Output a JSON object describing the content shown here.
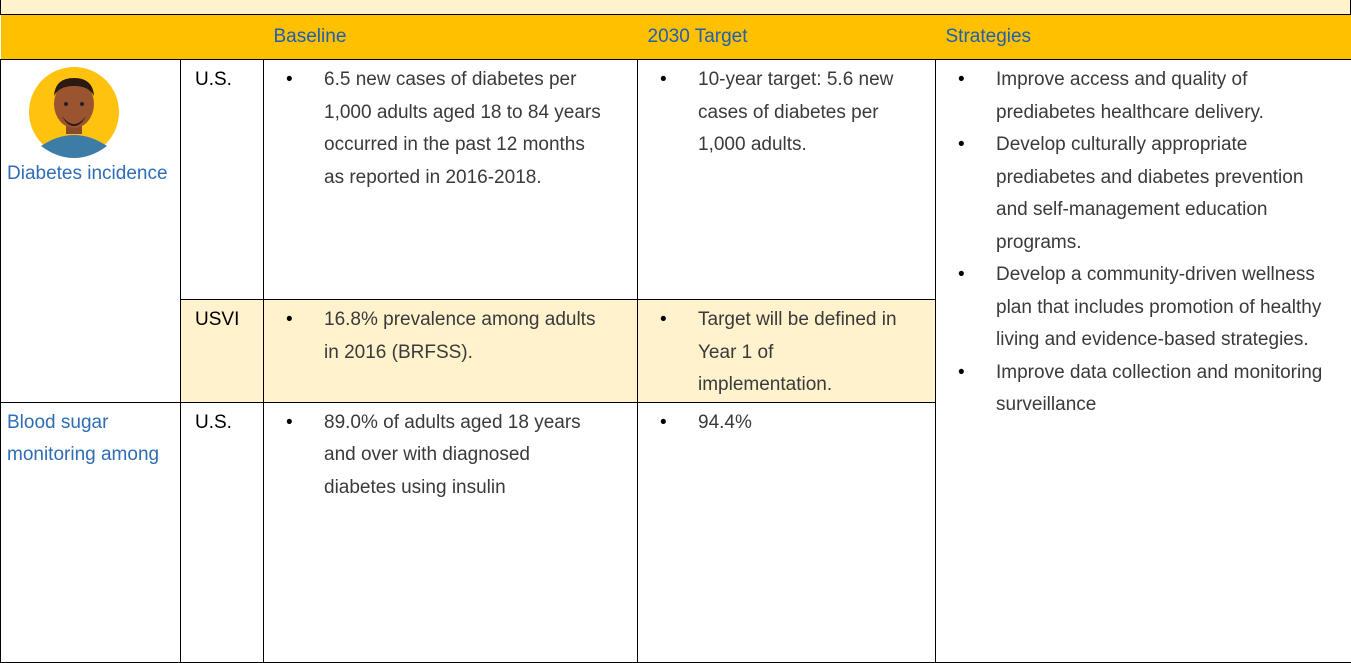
{
  "header": {
    "columns": [
      "Baseline",
      "2030 Target",
      "Strategies"
    ]
  },
  "rows": [
    {
      "measure": "Diabetes incidence",
      "region": "U.S.",
      "baseline": [
        "6.5 new cases of diabetes per 1,000 adults aged 18 to 84 years occurred in the past 12 months as reported in 2016-2018."
      ],
      "target": [
        "10-year target: 5.6 new cases of diabetes per 1,000 adults."
      ]
    },
    {
      "region": "USVI",
      "baseline": [
        "16.8% prevalence among adults in 2016 (BRFSS)."
      ],
      "target": [
        "Target will be defined in Year 1 of implementation."
      ]
    },
    {
      "measure": "Blood sugar monitoring among",
      "region": "U.S.",
      "baseline": [
        "89.0% of adults aged 18 years and over with diagnosed diabetes using insulin"
      ],
      "target": [
        "94.4%"
      ]
    }
  ],
  "strategies": [
    "Improve access and quality of prediabetes healthcare delivery.",
    "Develop culturally appropriate prediabetes and diabetes prevention and self-management education programs.",
    "Develop a community-driven wellness plan that includes promotion of healthy living and evidence-based strategies.",
    "Improve data collection and monitoring surveillance"
  ]
}
